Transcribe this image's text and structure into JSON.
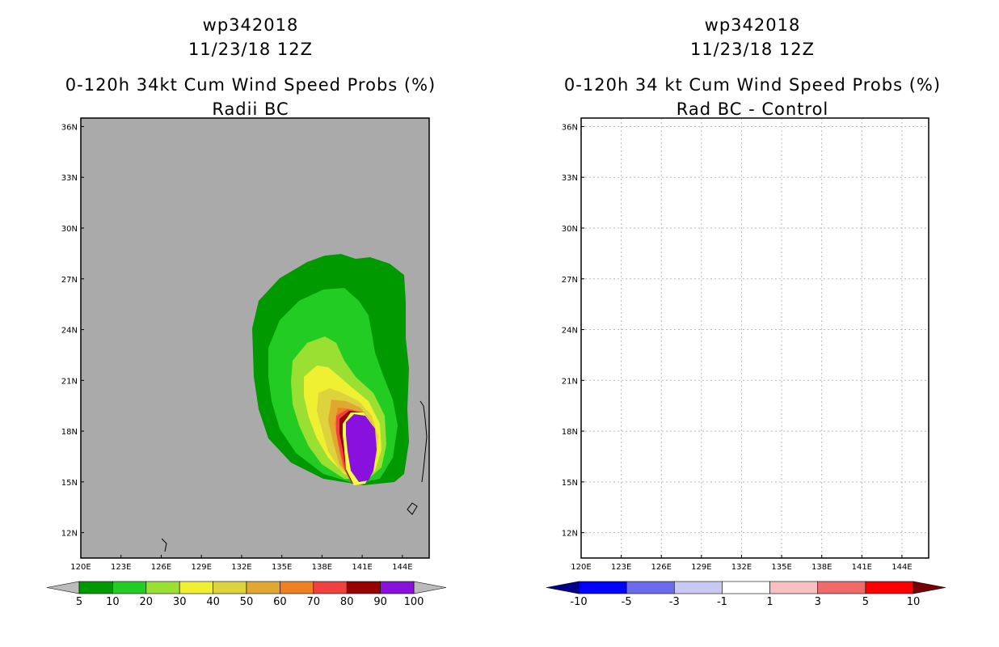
{
  "chart_data": [
    {
      "type": "heatmap",
      "title_line1": "wp342018",
      "title_line2": "11/23/18 12Z",
      "title_line3": "0-120h 34kt Cum Wind Speed Probs (%)",
      "title_line4": "Radii BC",
      "xlim": [
        120,
        146
      ],
      "ylim": [
        10.5,
        36.5
      ],
      "x_ticks": [
        "120E",
        "123E",
        "126E",
        "129E",
        "132E",
        "135E",
        "138E",
        "141E",
        "144E"
      ],
      "y_ticks": [
        "36N",
        "33N",
        "30N",
        "27N",
        "24N",
        "21N",
        "18N",
        "15N",
        "12N"
      ],
      "background": "#aaaaaa",
      "colorbar": {
        "labels": [
          "5",
          "10",
          "20",
          "30",
          "40",
          "50",
          "60",
          "70",
          "80",
          "90",
          "100"
        ],
        "colors": [
          "#009900",
          "#22cc22",
          "#99e033",
          "#f0f033",
          "#dcd33d",
          "#e0a830",
          "#ee8022",
          "#f04040",
          "#990000",
          "#8811dd"
        ],
        "end_colors": [
          "#bbbbbb",
          "#bbbbbb"
        ]
      },
      "levels": [
        {
          "value": 5,
          "color": "#009900"
        },
        {
          "value": 10,
          "color": "#22cc22"
        },
        {
          "value": 20,
          "color": "#99e033"
        },
        {
          "value": 30,
          "color": "#f0f033"
        },
        {
          "value": 40,
          "color": "#dcd33d"
        },
        {
          "value": 50,
          "color": "#e0a830"
        },
        {
          "value": 60,
          "color": "#ee8022"
        },
        {
          "value": 70,
          "color": "#f04040"
        },
        {
          "value": 80,
          "color": "#990000"
        },
        {
          "value": 90,
          "color": "#ffff44"
        },
        {
          "value": 100,
          "color": "#8811dd"
        }
      ]
    },
    {
      "type": "heatmap",
      "title_line1": "wp342018",
      "title_line2": "11/23/18 12Z",
      "title_line3": "0-120h 34 kt Cum Wind Speed Probs (%)",
      "title_line4": "Rad BC - Control",
      "xlim": [
        120,
        146
      ],
      "ylim": [
        10.5,
        36.5
      ],
      "x_ticks": [
        "120E",
        "123E",
        "126E",
        "129E",
        "132E",
        "135E",
        "138E",
        "141E",
        "144E"
      ],
      "y_ticks": [
        "36N",
        "33N",
        "30N",
        "27N",
        "24N",
        "21N",
        "18N",
        "15N",
        "12N"
      ],
      "background": "#ffffff",
      "colorbar": {
        "labels": [
          "-10",
          "-5",
          "-3",
          "-1",
          "1",
          "3",
          "5",
          "10"
        ],
        "colors": [
          "#0000ff",
          "#6b6bee",
          "#c8c8f4",
          "#ffffff",
          "#f8c0c0",
          "#f06a6a",
          "#ff0000"
        ],
        "end_colors": [
          "#000088",
          "#770000"
        ]
      },
      "levels": [
        {
          "value": -1,
          "color": "#c8c8f4"
        },
        {
          "value": -3,
          "color": "#6b6bee"
        },
        {
          "value": -5,
          "color": "#0000ff"
        },
        {
          "value": -10,
          "color": "#000066"
        },
        {
          "value": 3,
          "color": "#f8c0c0"
        },
        {
          "value": -3,
          "color": "#6b6bee"
        }
      ]
    }
  ]
}
